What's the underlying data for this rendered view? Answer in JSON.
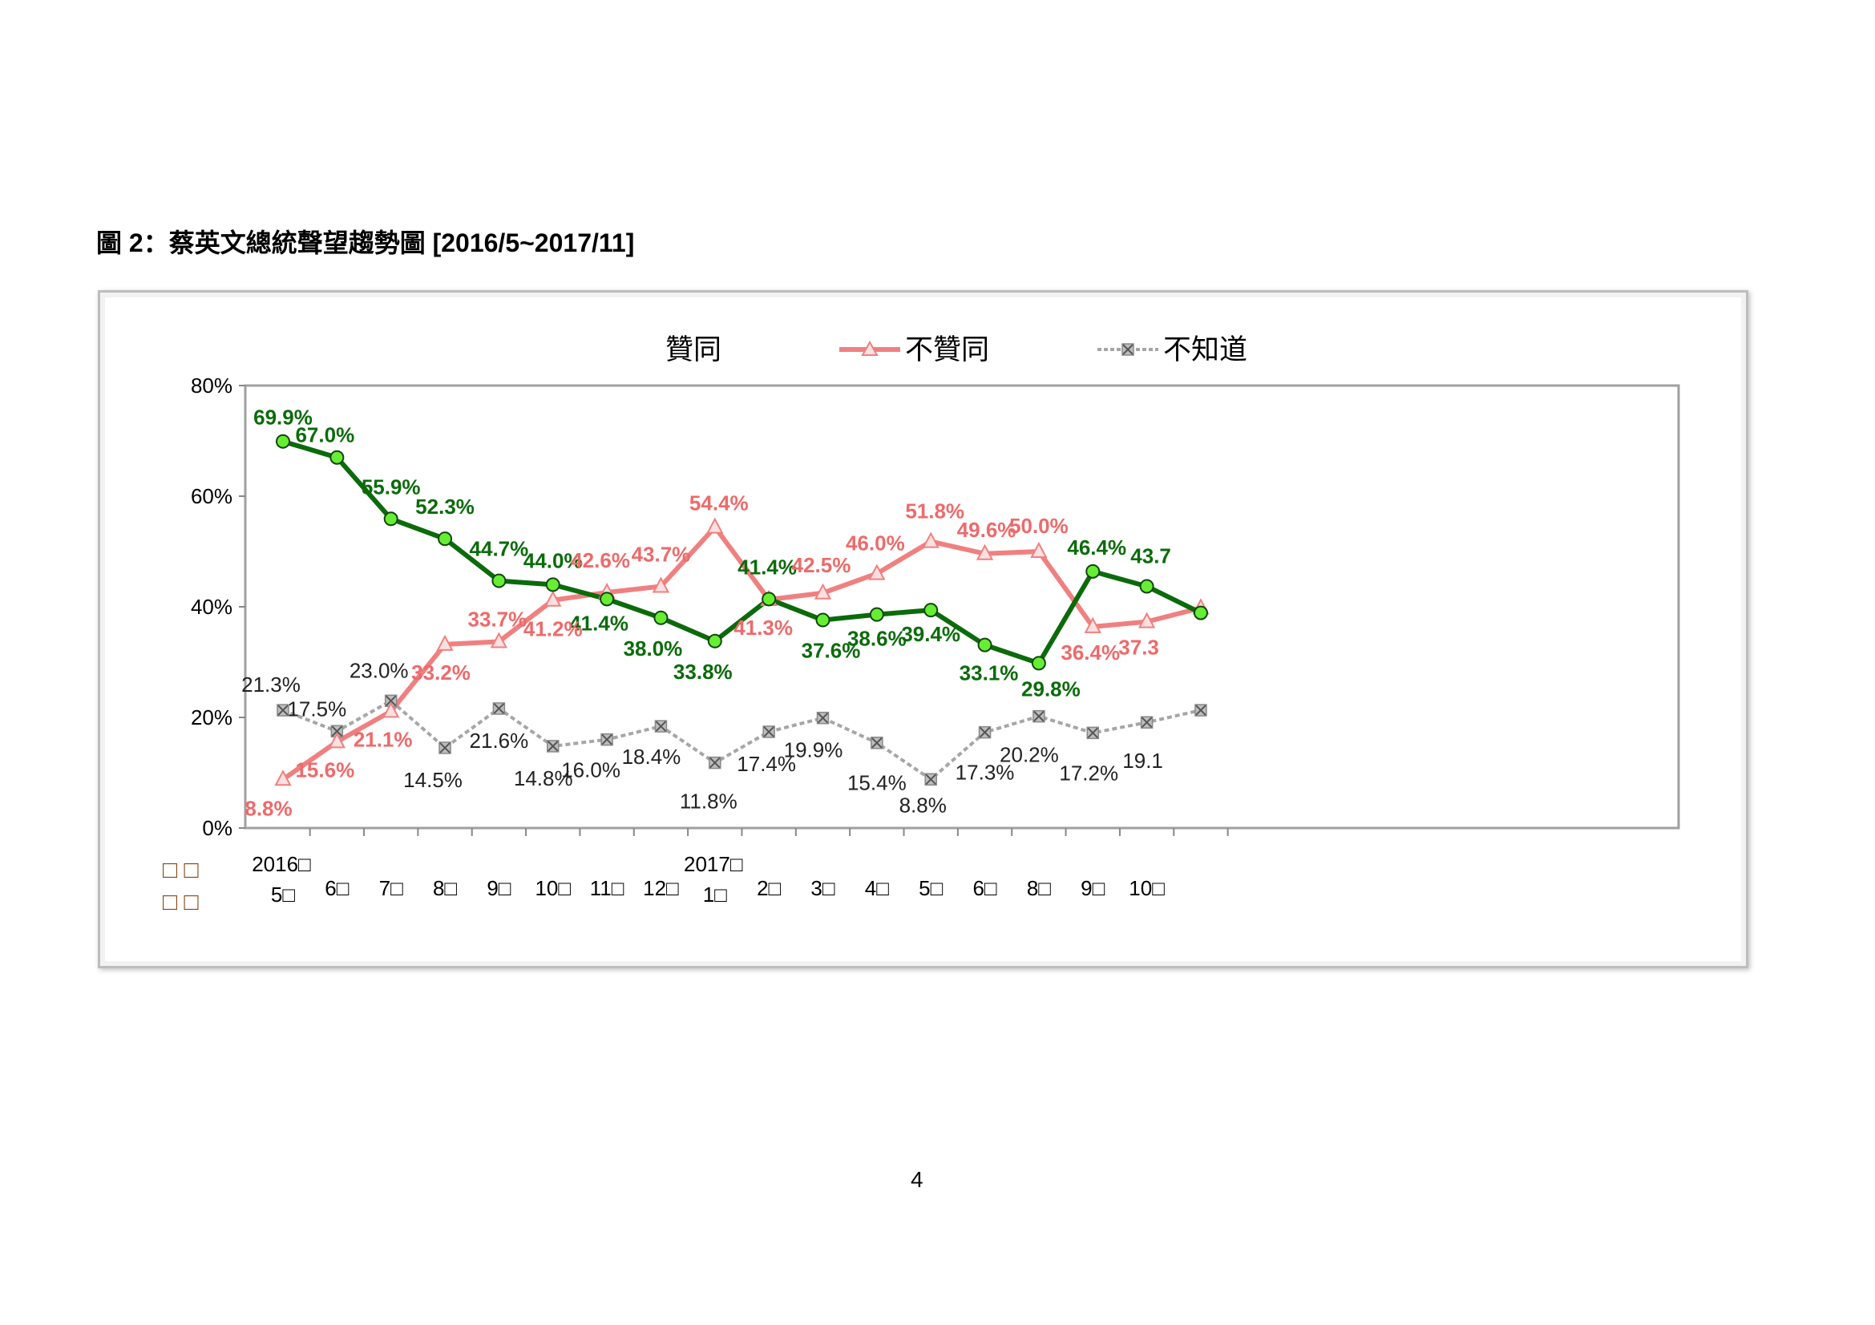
{
  "page": {
    "title": "圖 2：蔡英文總統聲望趨勢圖 [2016/5~2017/11]",
    "page_number": "4"
  },
  "colors": {
    "approve": "#0b6b0b",
    "approve_marker": "#66ee33",
    "disapprove": "#f08080",
    "dontknow": "#a6a6a6"
  },
  "chart_data": {
    "type": "line",
    "title": "",
    "xlabel": "",
    "ylabel": "",
    "ylim": [
      0,
      80
    ],
    "yticks": [
      "0%",
      "20%",
      "40%",
      "60%",
      "80%"
    ],
    "grid": false,
    "legend_position": "top",
    "x_label_corner": [
      "□ □",
      "□ □"
    ],
    "categories": [
      [
        "2016□",
        "5□"
      ],
      [
        "",
        "6□"
      ],
      [
        "",
        "7□"
      ],
      [
        "",
        "8□"
      ],
      [
        "",
        "9□"
      ],
      [
        "",
        "10□"
      ],
      [
        "",
        "11□"
      ],
      [
        "",
        "12□"
      ],
      [
        "2017□",
        "1□"
      ],
      [
        "",
        "2□"
      ],
      [
        "",
        "3□"
      ],
      [
        "",
        "4□"
      ],
      [
        "",
        "5□"
      ],
      [
        "",
        "6□"
      ],
      [
        "",
        "8□"
      ],
      [
        "",
        "9□"
      ],
      [
        "",
        "10□"
      ],
      [
        "",
        ""
      ]
    ],
    "series": [
      {
        "name": "贊同",
        "marker": "circle",
        "values": [
          69.9,
          67.0,
          55.9,
          52.3,
          44.7,
          44.0,
          41.4,
          38.0,
          33.8,
          41.4,
          37.6,
          38.6,
          39.4,
          33.1,
          29.8,
          46.4,
          43.7,
          38.9
        ],
        "labels": [
          "69.9%",
          "67.0%",
          "55.9%",
          "52.3%",
          "44.7%",
          "44.0%",
          "41.4%",
          "38.0%",
          "33.8%",
          "41.4%",
          "37.6%",
          "38.6%",
          "39.4%",
          "33.1%",
          "29.8%",
          "46.4%",
          "43.7",
          ""
        ]
      },
      {
        "name": "不贊同",
        "marker": "triangle",
        "values": [
          8.8,
          15.6,
          21.1,
          33.2,
          33.7,
          41.2,
          42.6,
          43.7,
          54.4,
          41.3,
          42.5,
          46.0,
          51.8,
          49.6,
          50.0,
          36.4,
          37.3,
          39.8
        ],
        "labels": [
          "8.8%",
          "15.6%",
          "21.1%",
          "33.2%",
          "33.7%",
          "41.2%",
          "42.6%",
          "43.7%",
          "54.4%",
          "41.3%",
          "42.5%",
          "46.0%",
          "51.8%",
          "49.6%",
          "50.0%",
          "36.4%",
          "37.3",
          ""
        ]
      },
      {
        "name": "不知道",
        "marker": "x-square",
        "values": [
          21.3,
          17.5,
          23.0,
          14.5,
          21.6,
          14.8,
          16.0,
          18.4,
          11.8,
          17.4,
          19.9,
          15.4,
          8.8,
          17.3,
          20.2,
          17.2,
          19.1,
          21.3
        ],
        "labels": [
          "21.3%",
          "17.5%",
          "23.0%",
          "14.5%",
          "21.6%",
          "14.8%",
          "16.0%",
          "18.4%",
          "11.8%",
          "17.4%",
          "19.9%",
          "15.4%",
          "8.8%",
          "17.3%",
          "20.2%",
          "17.2%",
          "19.1",
          ""
        ]
      }
    ]
  }
}
